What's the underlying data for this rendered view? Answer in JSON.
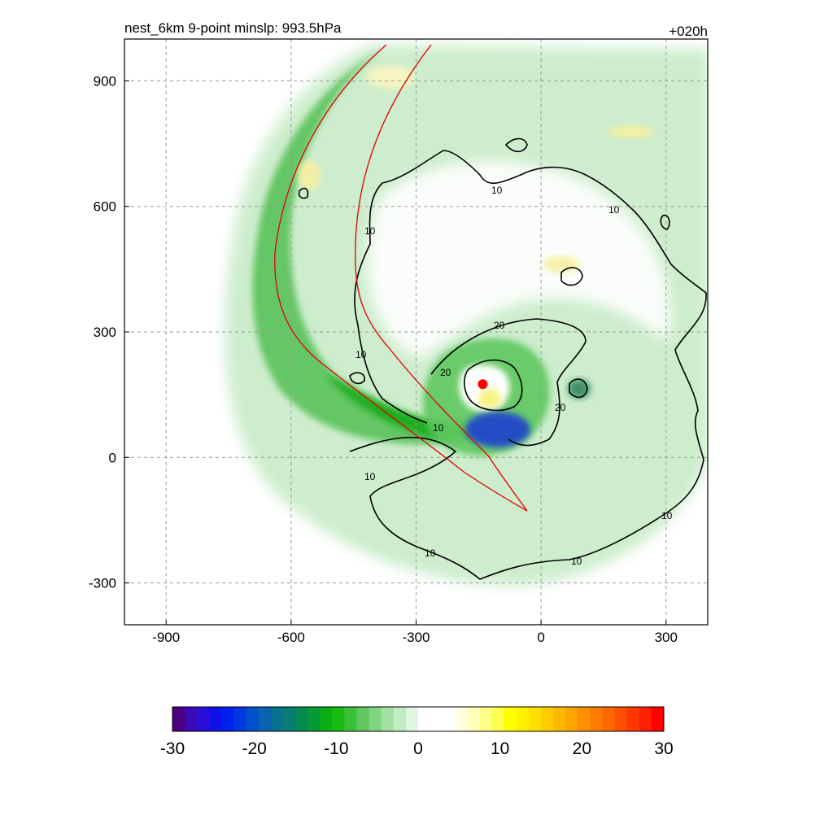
{
  "chart_data": {
    "type": "heatmap",
    "title": "nest_6km  9-point minslp: 993.5hPa",
    "time_label": "+020h",
    "xlim": [
      -1000,
      400
    ],
    "ylim": [
      -400,
      1000
    ],
    "x_ticks": [
      -900,
      -600,
      -300,
      0,
      300
    ],
    "y_ticks": [
      900,
      600,
      300,
      0,
      -300
    ],
    "grid": true,
    "colorbar": {
      "min": -30,
      "max": 30,
      "ticks": [
        -30,
        -20,
        -10,
        0,
        10,
        20,
        30
      ],
      "placement": "bottom",
      "colors": [
        "#4b0082",
        "#3b0ab8",
        "#2810d8",
        "#1010e8",
        "#0020f0",
        "#0038e0",
        "#0050c8",
        "#0a62b0",
        "#0a7090",
        "#087c70",
        "#068a50",
        "#049a34",
        "#0aae14",
        "#18bc10",
        "#3cc03a",
        "#5ec85e",
        "#80d480",
        "#a2e0a2",
        "#c2ecc2",
        "#e0f6e0",
        "#ffffff",
        "#ffffff",
        "#ffffff",
        "#ffffe0",
        "#ffffb8",
        "#ffff88",
        "#ffff50",
        "#ffff00",
        "#fff000",
        "#ffe000",
        "#ffcc00",
        "#ffb800",
        "#ffa400",
        "#ff9000",
        "#ff7c00",
        "#ff6800",
        "#ff5000",
        "#ff3800",
        "#ff2000",
        "#ff0000"
      ]
    },
    "contour_levels": [
      10,
      20
    ],
    "storm_center": {
      "x": -140,
      "y": 175,
      "color": "#ff0000"
    },
    "colors": {
      "line_contour": "#000000",
      "track": "#e00000",
      "grid": "#999999"
    }
  }
}
